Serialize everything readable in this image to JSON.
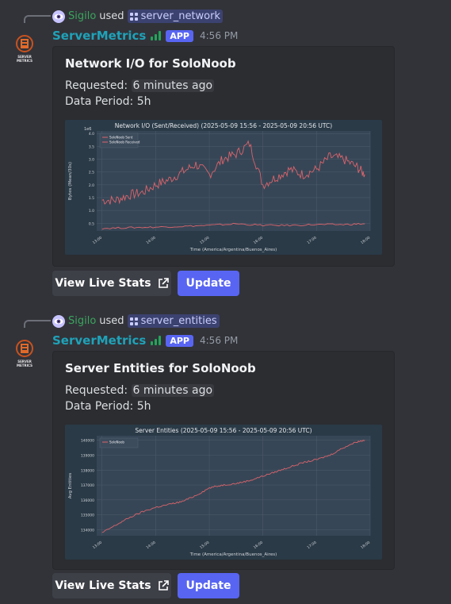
{
  "messages": [
    {
      "reply": {
        "user": "Sigilo",
        "used": "used",
        "command": "server_network"
      },
      "bot": {
        "name": "ServerMetrics",
        "tag": "APP",
        "time": "4:56 PM"
      },
      "embed": {
        "title": "Network I/O for SoloNoob",
        "requested_label": "Requested:",
        "requested_value": "6 minutes ago",
        "period_label": "Data Period:",
        "period_value": "5h"
      },
      "buttons": {
        "live": "View Live Stats",
        "update": "Update"
      }
    },
    {
      "reply": {
        "user": "Sigilo",
        "used": "used",
        "command": "server_entities"
      },
      "bot": {
        "name": "ServerMetrics",
        "tag": "APP",
        "time": "4:56 PM"
      },
      "embed": {
        "title": "Server Entities for SoloNoob",
        "requested_label": "Requested:",
        "requested_value": "6 minutes ago",
        "period_label": "Data Period:",
        "period_value": "5h"
      },
      "buttons": {
        "live": "View Live Stats",
        "update": "Update"
      }
    }
  ],
  "avatar_text": [
    "SERVER",
    "METRICS"
  ],
  "chart_data": [
    {
      "type": "line",
      "title": "Network I/O (Sent/Received) (2025-05-09 15:56 - 2025-05-09 20:56 UTC)",
      "xlabel": "Time (America/Argentina/Buenos_Aires)",
      "ylabel": "Bytes (Mean/30s)",
      "y_multiplier": "1e6",
      "x_ticks": [
        "13:00",
        "14:00",
        "15:00",
        "16:00",
        "17:00",
        "18:00"
      ],
      "y_ticks": [
        "0.5",
        "1.0",
        "1.5",
        "2.0",
        "2.5",
        "3.0",
        "3.5",
        "4.0"
      ],
      "ylim": [
        0.2,
        4.1
      ],
      "xlim": [
        12.9,
        18.0
      ],
      "legend": "top-left",
      "grid": true,
      "series": [
        {
          "name": "SoloNoob Sent",
          "color": "#d9646c",
          "x": [
            13.0,
            13.25,
            13.5,
            13.75,
            14.0,
            14.25,
            14.5,
            14.75,
            15.0,
            15.25,
            15.5,
            15.75,
            16.0,
            16.25,
            16.5,
            16.75,
            17.0,
            17.25,
            17.5,
            17.75,
            17.9
          ],
          "y": [
            1.4,
            1.4,
            1.6,
            1.7,
            2.0,
            2.2,
            2.5,
            2.8,
            2.4,
            3.0,
            3.2,
            3.6,
            2.0,
            2.3,
            2.6,
            2.4,
            2.6,
            3.1,
            3.0,
            2.7,
            2.4
          ]
        },
        {
          "name": "SoloNoob Received",
          "color": "#d9646c",
          "x": [
            13.0,
            13.5,
            14.0,
            14.5,
            15.0,
            15.5,
            16.0,
            16.5,
            17.0,
            17.5,
            17.9
          ],
          "y": [
            0.3,
            0.33,
            0.35,
            0.38,
            0.42,
            0.48,
            0.42,
            0.42,
            0.45,
            0.45,
            0.48
          ]
        }
      ]
    },
    {
      "type": "line",
      "title": "Server Entities (2025-05-09 15:56 - 2025-05-09 20:56 UTC)",
      "xlabel": "Time (America/Argentina/Buenos_Aires)",
      "ylabel": "Avg Entities",
      "x_ticks": [
        "13:00",
        "14:00",
        "15:00",
        "16:00",
        "17:00",
        "18:00"
      ],
      "y_ticks": [
        "134000",
        "135000",
        "136000",
        "137000",
        "138000",
        "139000",
        "140000"
      ],
      "ylim": [
        133600,
        140300
      ],
      "xlim": [
        12.9,
        18.0
      ],
      "legend": "top-left",
      "grid": true,
      "series": [
        {
          "name": "SoloNoob",
          "color": "#d9646c",
          "x": [
            13.0,
            13.25,
            13.5,
            13.75,
            14.0,
            14.25,
            14.5,
            14.75,
            15.0,
            15.25,
            15.5,
            15.75,
            16.0,
            16.25,
            16.5,
            16.75,
            17.0,
            17.25,
            17.5,
            17.75,
            17.9
          ],
          "y": [
            133800,
            134300,
            134800,
            135200,
            135500,
            135700,
            135900,
            136300,
            136800,
            137000,
            137100,
            137300,
            137600,
            137900,
            138200,
            138500,
            138700,
            139000,
            139500,
            139900,
            140000
          ]
        }
      ]
    }
  ]
}
